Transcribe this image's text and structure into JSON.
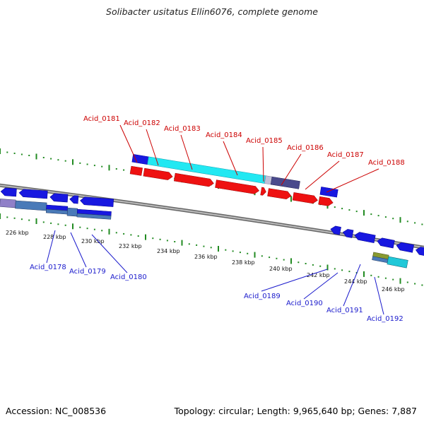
{
  "title": "Solibacter usitatus Ellin6076, complete genome",
  "footer": {
    "accession": "Accession: NC_008536",
    "topology": "Topology: circular",
    "length": "Length: 9,965,640 bp",
    "genes": "Genes: 7,887"
  },
  "colors": {
    "forward_cds": "#1a1ae6",
    "reverse_cds": "#ee1111",
    "forward_label": "#cc0000",
    "reverse_label": "#1a1acc",
    "tick": "#228b22",
    "backbone": "#808080",
    "cyan_feature": "#20e6f0",
    "slate_feature": "#4a4a8c",
    "steel_feature": "#4a7ab8"
  },
  "scale_labels": [
    "226 kbp",
    "228 kbp",
    "230 kbp",
    "232 kbp",
    "234 kbp",
    "236 kbp",
    "238 kbp",
    "240 kbp",
    "242 kbp",
    "244 kbp",
    "246 kbp"
  ],
  "upper_genes": [
    "Acid_0181",
    "Acid_0182",
    "Acid_0183",
    "Acid_0184",
    "Acid_0185",
    "Acid_0186",
    "Acid_0187",
    "Acid_0188"
  ],
  "lower_genes": [
    "Acid_0178",
    "Acid_0179",
    "Acid_0180",
    "Acid_0189",
    "Acid_0190",
    "Acid_0191",
    "Acid_0192"
  ]
}
